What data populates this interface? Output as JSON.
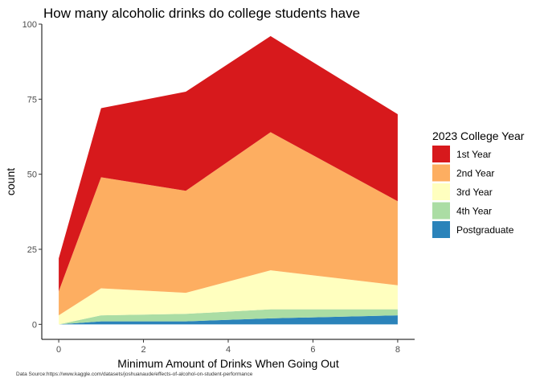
{
  "chart_data": {
    "type": "area",
    "stacked": true,
    "title": "How many alcoholic drinks do college students have",
    "xlabel": "Minimum Amount of Drinks When Going Out",
    "ylabel": "count",
    "xlim": [
      -0.4,
      8.4
    ],
    "ylim": [
      -5,
      100
    ],
    "xticks": [
      0,
      2,
      4,
      6,
      8
    ],
    "yticks": [
      0,
      25,
      50,
      75,
      100
    ],
    "grid": false,
    "legend": {
      "title": "2023 College Year",
      "placement": "right"
    },
    "x": [
      0,
      1,
      3,
      5,
      8
    ],
    "series": [
      {
        "name": "Postgraduate",
        "color": "#2b83ba",
        "values": [
          0,
          1,
          1,
          2,
          3
        ]
      },
      {
        "name": "4th Year",
        "color": "#abdda4",
        "values": [
          0,
          2,
          2.5,
          3,
          2
        ]
      },
      {
        "name": "3rd Year",
        "color": "#ffffbf",
        "values": [
          3,
          9,
          7,
          13,
          8
        ]
      },
      {
        "name": "2nd Year",
        "color": "#fdae61",
        "values": [
          8,
          37,
          34,
          46,
          28
        ]
      },
      {
        "name": "1st Year",
        "color": "#d7191c",
        "values": [
          11,
          23,
          33,
          32,
          29
        ]
      }
    ],
    "legend_order": [
      "1st Year",
      "2nd Year",
      "3rd Year",
      "4th Year",
      "Postgraduate"
    ]
  },
  "caption": "Data Source:https://www.kaggle.com/datasets/joshuanaude/effects-of-alcohol-on-student-performance"
}
